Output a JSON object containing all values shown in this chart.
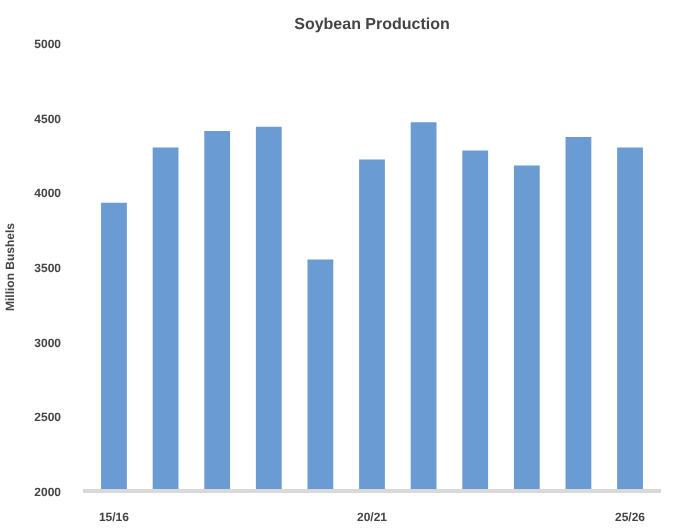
{
  "chart_data": {
    "type": "bar",
    "title": "Soybean Production",
    "ylabel": "Million Bushels",
    "categories": [
      "15/16",
      null,
      null,
      null,
      null,
      "20/21",
      null,
      null,
      null,
      null,
      "25/26"
    ],
    "series": [
      {
        "color": "#6a9bd3",
        "values": [
          3930,
          4300,
          4410,
          4440,
          3550,
          4220,
          4470,
          4280,
          4180,
          4370,
          4300
        ]
      }
    ],
    "ylim": [
      2000,
      5000
    ],
    "yticks": [
      2000,
      2500,
      3000,
      3500,
      4000,
      4500,
      5000
    ],
    "grid": false
  }
}
